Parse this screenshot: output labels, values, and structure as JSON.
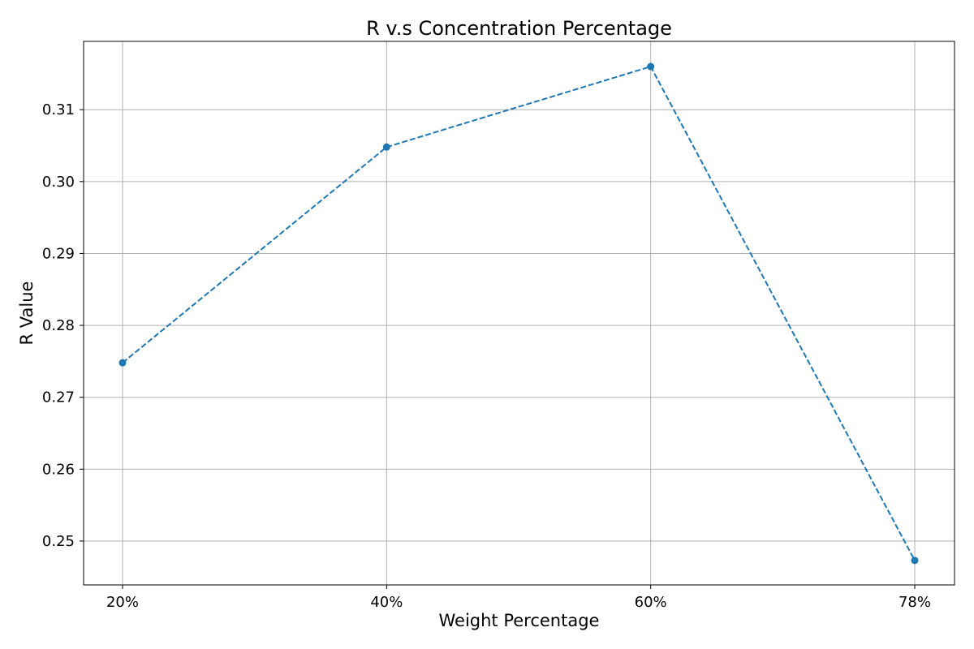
{
  "chart_data": {
    "type": "line",
    "title": "R v.s Concentration Percentage",
    "xlabel": "Weight Percentage",
    "ylabel": "R Value",
    "categories": [
      "20%",
      "40%",
      "60%",
      "78%"
    ],
    "series": [
      {
        "values": [
          0.2748,
          0.3048,
          0.316,
          0.2473
        ],
        "color": "#1f77b4",
        "line_style": "dashed",
        "marker": "circle"
      }
    ],
    "yticks": [
      "0.25",
      "0.26",
      "0.27",
      "0.28",
      "0.29",
      "0.30",
      "0.31"
    ],
    "ylim": [
      0.2439,
      0.3195
    ],
    "grid": true,
    "colors": {
      "grid": "#b0b0b0",
      "axis": "#000000"
    }
  }
}
